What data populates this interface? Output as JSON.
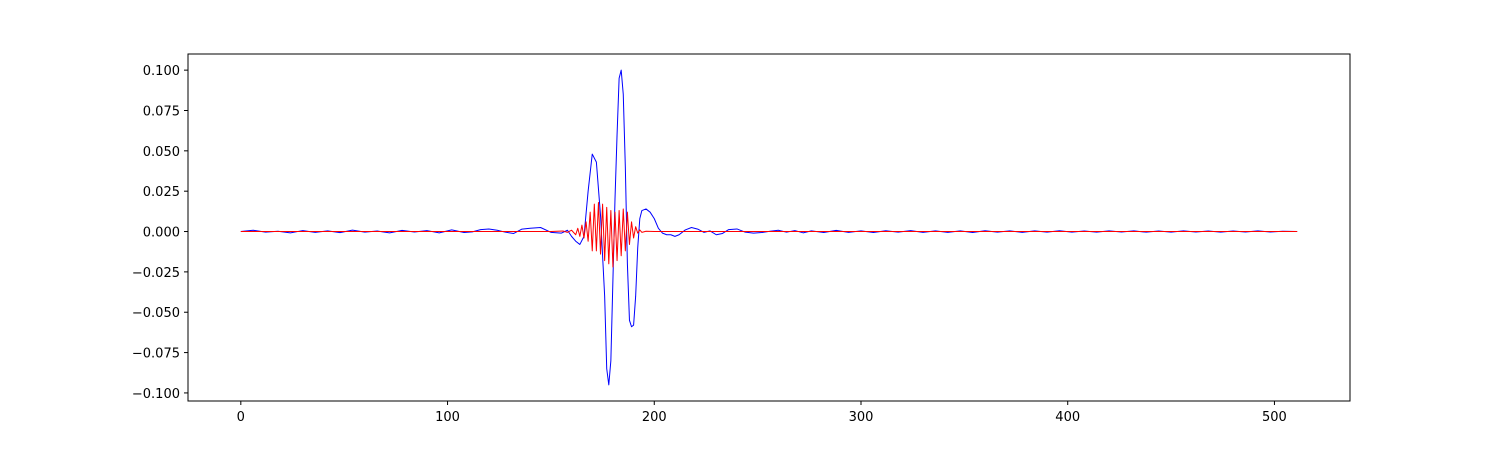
{
  "chart_data": {
    "type": "line",
    "title": "",
    "xlabel": "",
    "ylabel": "",
    "xlim": [
      -25.55,
      536.55
    ],
    "ylim": [
      -0.105,
      0.11
    ],
    "x_ticks": [
      0,
      100,
      200,
      300,
      400,
      500
    ],
    "x_tick_labels": [
      "0",
      "100",
      "200",
      "300",
      "400",
      "500"
    ],
    "y_ticks": [
      -0.1,
      -0.075,
      -0.05,
      -0.025,
      0.0,
      0.025,
      0.05,
      0.075,
      0.1
    ],
    "y_tick_labels": [
      "−0.100",
      "−0.075",
      "−0.050",
      "−0.025",
      "0.000",
      "0.025",
      "0.050",
      "0.075",
      "0.100"
    ],
    "grid": false,
    "legend": "none",
    "series": [
      {
        "color": "#0000ff",
        "points": [
          [
            0,
            0.0
          ],
          [
            6,
            0.0008
          ],
          [
            12,
            -0.0004
          ],
          [
            18,
            0.0002
          ],
          [
            24,
            -0.0008
          ],
          [
            30,
            0.0006
          ],
          [
            36,
            -0.0005
          ],
          [
            42,
            0.0004
          ],
          [
            48,
            -0.0007
          ],
          [
            54,
            0.0009
          ],
          [
            60,
            -0.0004
          ],
          [
            66,
            0.0003
          ],
          [
            72,
            -0.0008
          ],
          [
            78,
            0.0007
          ],
          [
            84,
            -0.0003
          ],
          [
            90,
            0.0006
          ],
          [
            96,
            -0.0008
          ],
          [
            102,
            0.001
          ],
          [
            108,
            -0.0006
          ],
          [
            112,
            -0.0002
          ],
          [
            116,
            0.0012
          ],
          [
            120,
            0.0016
          ],
          [
            124,
            0.0008
          ],
          [
            128,
            -0.0004
          ],
          [
            132,
            -0.0012
          ],
          [
            136,
            0.0015
          ],
          [
            140,
            0.002
          ],
          [
            145,
            0.0025
          ],
          [
            150,
            -0.0005
          ],
          [
            155,
            -0.001
          ],
          [
            158,
            0.0008
          ],
          [
            160,
            -0.003
          ],
          [
            162,
            -0.006
          ],
          [
            164,
            -0.008
          ],
          [
            166,
            -0.003
          ],
          [
            168,
            0.025
          ],
          [
            170,
            0.048
          ],
          [
            172,
            0.043
          ],
          [
            174,
            0.01
          ],
          [
            176,
            -0.04
          ],
          [
            177,
            -0.085
          ],
          [
            178,
            -0.095
          ],
          [
            179,
            -0.08
          ],
          [
            180,
            -0.03
          ],
          [
            181,
            0.02
          ],
          [
            182,
            0.06
          ],
          [
            183,
            0.095
          ],
          [
            184,
            0.1
          ],
          [
            185,
            0.085
          ],
          [
            186,
            0.04
          ],
          [
            187,
            -0.02
          ],
          [
            188,
            -0.055
          ],
          [
            189,
            -0.059
          ],
          [
            190,
            -0.058
          ],
          [
            191,
            -0.04
          ],
          [
            192,
            -0.01
          ],
          [
            193,
            0.008
          ],
          [
            194,
            0.013
          ],
          [
            196,
            0.014
          ],
          [
            198,
            0.012
          ],
          [
            200,
            0.008
          ],
          [
            202,
            0.002
          ],
          [
            204,
            -0.001
          ],
          [
            206,
            -0.002
          ],
          [
            208,
            -0.002
          ],
          [
            210,
            -0.003
          ],
          [
            212,
            -0.002
          ],
          [
            215,
            0.001
          ],
          [
            218,
            0.0025
          ],
          [
            221,
            0.0015
          ],
          [
            224,
            -0.0005
          ],
          [
            227,
            0.0004
          ],
          [
            230,
            -0.002
          ],
          [
            233,
            -0.0012
          ],
          [
            236,
            0.0012
          ],
          [
            240,
            0.0016
          ],
          [
            244,
            -0.0004
          ],
          [
            248,
            -0.001
          ],
          [
            252,
            -0.0006
          ],
          [
            256,
            0.0002
          ],
          [
            260,
            0.0008
          ],
          [
            264,
            -0.0004
          ],
          [
            268,
            0.0006
          ],
          [
            272,
            -0.0008
          ],
          [
            276,
            0.0004
          ],
          [
            282,
            -0.0006
          ],
          [
            288,
            0.0007
          ],
          [
            294,
            -0.0005
          ],
          [
            300,
            0.0004
          ],
          [
            306,
            -0.0006
          ],
          [
            312,
            0.0005
          ],
          [
            318,
            -0.0004
          ],
          [
            324,
            0.0006
          ],
          [
            330,
            -0.0005
          ],
          [
            336,
            0.0004
          ],
          [
            342,
            -0.0005
          ],
          [
            348,
            0.0004
          ],
          [
            354,
            -0.0006
          ],
          [
            360,
            0.0005
          ],
          [
            366,
            -0.0004
          ],
          [
            372,
            0.0004
          ],
          [
            378,
            -0.0005
          ],
          [
            384,
            0.0004
          ],
          [
            390,
            -0.0004
          ],
          [
            396,
            0.0005
          ],
          [
            402,
            -0.0004
          ],
          [
            408,
            0.0003
          ],
          [
            414,
            -0.0004
          ],
          [
            420,
            0.0004
          ],
          [
            426,
            -0.0003
          ],
          [
            432,
            0.0004
          ],
          [
            438,
            -0.0004
          ],
          [
            444,
            0.0003
          ],
          [
            450,
            -0.0004
          ],
          [
            456,
            0.0004
          ],
          [
            462,
            -0.0003
          ],
          [
            468,
            0.0003
          ],
          [
            474,
            -0.0004
          ],
          [
            480,
            0.0003
          ],
          [
            486,
            -0.0003
          ],
          [
            492,
            0.0004
          ],
          [
            498,
            -0.0003
          ],
          [
            504,
            0.0002
          ],
          [
            511,
            0.0
          ]
        ]
      },
      {
        "color": "#ff0000",
        "points": [
          [
            0,
            0.0
          ],
          [
            100,
            0.0
          ],
          [
            140,
            0.0
          ],
          [
            150,
            0.0
          ],
          [
            156,
            0.0003
          ],
          [
            158,
            -0.0005
          ],
          [
            160,
            0.0008
          ],
          [
            162,
            -0.002
          ],
          [
            163,
            0.002
          ],
          [
            164,
            -0.003
          ],
          [
            165,
            0.004
          ],
          [
            166,
            -0.004
          ],
          [
            167,
            0.006
          ],
          [
            168,
            -0.006
          ],
          [
            169,
            0.012
          ],
          [
            170,
            -0.012
          ],
          [
            171,
            0.017
          ],
          [
            172,
            -0.012
          ],
          [
            173,
            0.018
          ],
          [
            174,
            -0.014
          ],
          [
            175,
            0.017
          ],
          [
            176,
            -0.018
          ],
          [
            177,
            0.015
          ],
          [
            178,
            -0.02
          ],
          [
            179,
            0.013
          ],
          [
            180,
            -0.022
          ],
          [
            181,
            0.012
          ],
          [
            182,
            -0.018
          ],
          [
            183,
            0.013
          ],
          [
            184,
            -0.015
          ],
          [
            185,
            0.014
          ],
          [
            186,
            -0.012
          ],
          [
            187,
            0.012
          ],
          [
            188,
            -0.008
          ],
          [
            189,
            0.006
          ],
          [
            190,
            -0.004
          ],
          [
            191,
            0.003
          ],
          [
            192,
            -0.001
          ],
          [
            193,
            0.001
          ],
          [
            194,
            -0.0005
          ],
          [
            196,
            0.0002
          ],
          [
            200,
            0.0
          ],
          [
            300,
            0.0
          ],
          [
            400,
            0.0
          ],
          [
            511,
            0.0
          ]
        ]
      }
    ]
  }
}
